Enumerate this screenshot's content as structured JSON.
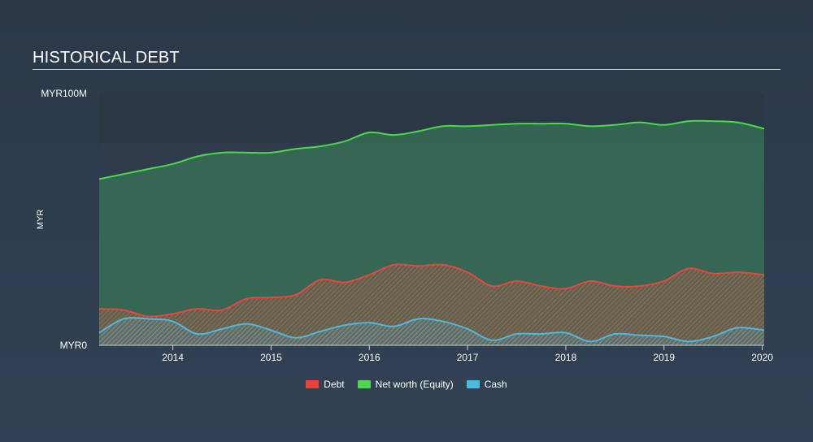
{
  "title": "HISTORICAL DEBT",
  "colors": {
    "debt": "#e8453c",
    "equity": "#4cd84c",
    "cash": "#4fb8e0"
  },
  "chart_data": {
    "type": "area",
    "title": "HISTORICAL DEBT",
    "ylabel": "MYR",
    "y_tick_labels": [
      "MYR100M",
      "MYR0"
    ],
    "ylim": [
      0,
      100
    ],
    "y_unit": "MYR millions",
    "xlim": [
      2013.25,
      2020.02
    ],
    "x_ticks": [
      2014,
      2015,
      2016,
      2017,
      2018,
      2019,
      2020
    ],
    "x_tick_labels": [
      "2014",
      "2015",
      "2016",
      "2017",
      "2018",
      "2019",
      "2020"
    ],
    "legend": [
      "Debt",
      "Net worth (Equity)",
      "Cash"
    ],
    "legend_position": "bottom",
    "grid": false,
    "series": [
      {
        "name": "Net worth (Equity)",
        "x": [
          2013.25,
          2013.5,
          2013.75,
          2014.0,
          2014.25,
          2014.5,
          2014.75,
          2015.0,
          2015.25,
          2015.5,
          2015.75,
          2016.0,
          2016.25,
          2016.5,
          2016.75,
          2017.0,
          2017.25,
          2017.5,
          2017.75,
          2018.0,
          2018.25,
          2018.5,
          2018.75,
          2019.0,
          2019.25,
          2019.5,
          2019.75,
          2020.02
        ],
        "values": [
          66,
          68,
          70,
          72,
          75,
          76.5,
          76.5,
          76.5,
          78,
          79,
          81,
          84.5,
          83.5,
          85,
          87,
          87,
          87.5,
          88,
          88,
          88,
          87,
          87.5,
          88.5,
          87.5,
          89,
          89,
          88.5,
          86
        ]
      },
      {
        "name": "Debt",
        "x": [
          2013.25,
          2013.5,
          2013.75,
          2014.0,
          2014.25,
          2014.5,
          2014.75,
          2015.0,
          2015.25,
          2015.5,
          2015.75,
          2016.0,
          2016.25,
          2016.5,
          2016.75,
          2017.0,
          2017.25,
          2017.5,
          2017.75,
          2018.0,
          2018.25,
          2018.5,
          2018.75,
          2019.0,
          2019.25,
          2019.5,
          2019.75,
          2020.02
        ],
        "values": [
          14.5,
          14,
          11.5,
          12.5,
          14.5,
          14,
          18.5,
          19,
          20,
          26,
          25,
          28,
          32,
          31.5,
          32,
          29,
          23.5,
          25.5,
          23.5,
          22.5,
          25.5,
          23.5,
          23.5,
          25.5,
          30.5,
          28.5,
          29,
          28
        ]
      },
      {
        "name": "Cash",
        "x": [
          2013.25,
          2013.5,
          2013.75,
          2014.0,
          2014.25,
          2014.5,
          2014.75,
          2015.0,
          2015.25,
          2015.5,
          2015.75,
          2016.0,
          2016.25,
          2016.5,
          2016.75,
          2017.0,
          2017.25,
          2017.5,
          2017.75,
          2018.0,
          2018.25,
          2018.5,
          2018.75,
          2019.0,
          2019.25,
          2019.5,
          2019.75,
          2020.02
        ],
        "values": [
          5,
          10.5,
          10.5,
          9.5,
          4.5,
          6.5,
          8.5,
          6,
          3,
          5.5,
          8,
          9,
          7.5,
          10.5,
          9.5,
          6.5,
          2,
          4.5,
          4.5,
          5,
          1.5,
          4.5,
          4,
          3.5,
          1.5,
          3.5,
          7,
          6
        ]
      }
    ]
  }
}
